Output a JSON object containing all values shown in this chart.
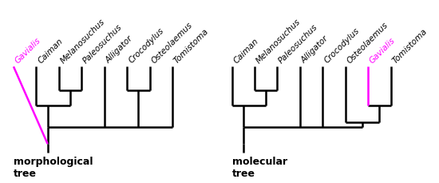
{
  "morph_taxa_x": {
    "Gavialis": 0,
    "Caiman": 1,
    "Melanosuchus": 2,
    "Paleosuchus": 3,
    "Alligator": 4,
    "Crocodylus": 5,
    "Osteolaemus": 6,
    "Tomistoma": 7
  },
  "mol_taxa_x": {
    "Caiman": 0,
    "Melanosuchus": 1,
    "Paleosuchus": 2,
    "Alligator": 3,
    "Crocodylus": 4,
    "Osteolaemus": 5,
    "Gavialis": 6,
    "Tomistoma": 7
  },
  "morph_highlighted": "Gavialis",
  "mol_highlighted": "Gavialis",
  "morph_label": "morphological\ntree",
  "mol_label": "molecular\ntree",
  "line_color": "#000000",
  "highlight_color": "#ff00ff",
  "label_fontsize": 7.5,
  "title_fontsize": 9,
  "bg_color": "#ffffff",
  "lw": 1.8
}
